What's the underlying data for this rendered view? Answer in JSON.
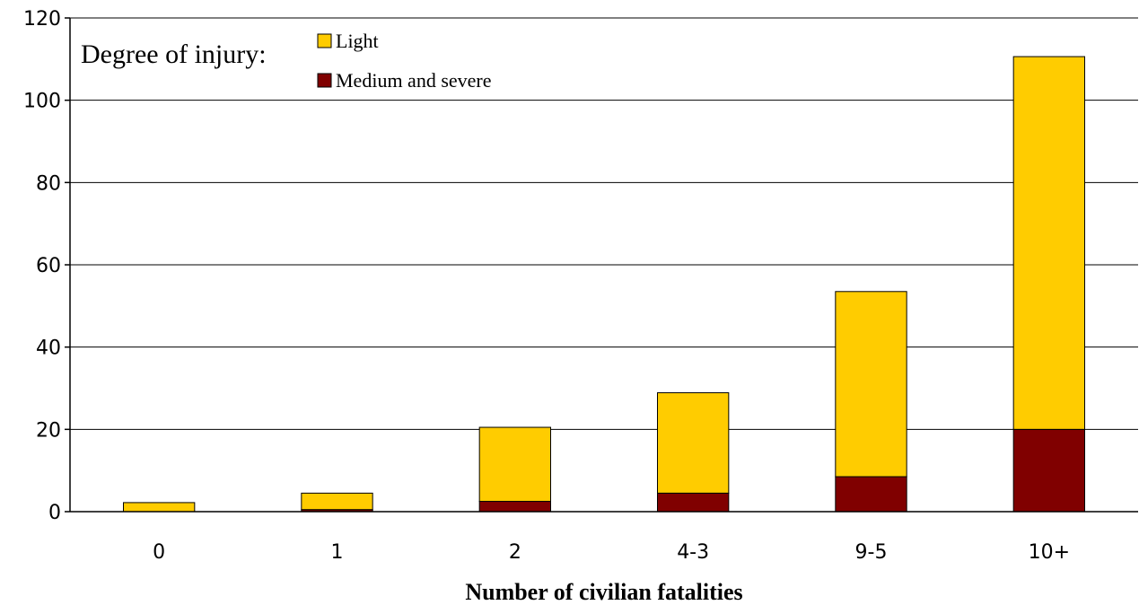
{
  "chart_data": {
    "type": "bar",
    "stacked": true,
    "categories": [
      "0",
      "1",
      "2",
      "4-3",
      "9-5",
      "10+"
    ],
    "series": [
      {
        "name": "Medium and severe",
        "color": "#800000",
        "values": [
          0,
          0.5,
          2.5,
          4.5,
          8.5,
          20
        ]
      },
      {
        "name": "Light",
        "color": "#FFCC00",
        "values": [
          2.2,
          4,
          18,
          24.4,
          45,
          90.6
        ]
      }
    ],
    "ylim": [
      0,
      120
    ],
    "yticks": [
      0,
      20,
      40,
      60,
      80,
      100,
      120
    ],
    "xlabel": "Number of civilian fatalities",
    "ylabel": "",
    "title": "",
    "grid": "horizontal",
    "legend": {
      "title": "Degree of injury:",
      "position": "top-left"
    }
  }
}
